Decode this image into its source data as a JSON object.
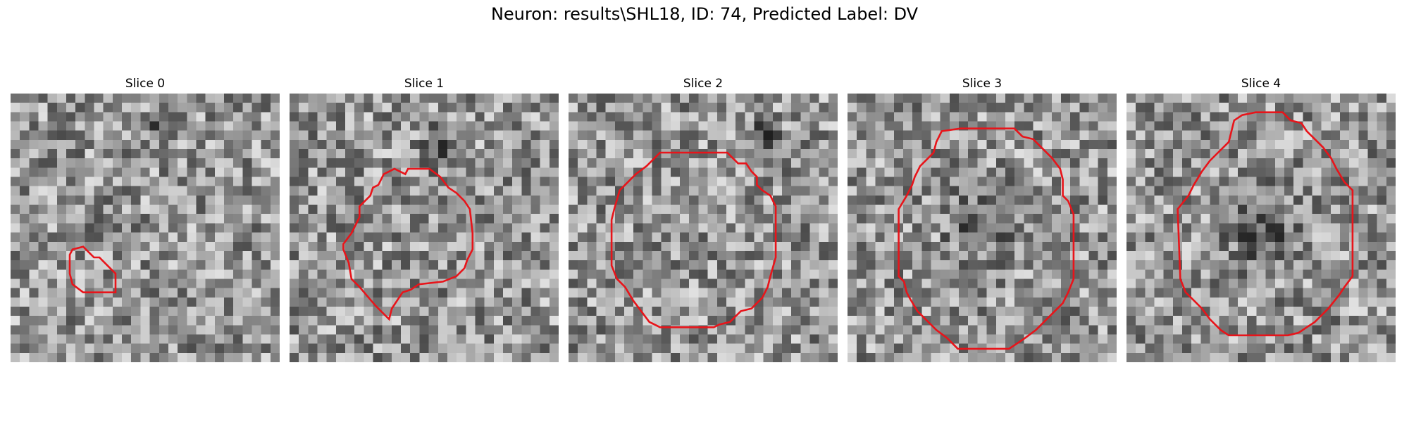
{
  "figure": {
    "title": "Neuron: results\\SHL18, ID: 74, Predicted Label: DV"
  },
  "panels": [
    {
      "title": "Slice 0",
      "seed": 11,
      "dark_blob": [
        0.55,
        0.12,
        0.08
      ],
      "contour": [
        [
          0.23,
          0.58
        ],
        [
          0.27,
          0.57
        ],
        [
          0.29,
          0.59
        ],
        [
          0.31,
          0.61
        ],
        [
          0.33,
          0.61
        ],
        [
          0.35,
          0.63
        ],
        [
          0.37,
          0.65
        ],
        [
          0.39,
          0.67
        ],
        [
          0.39,
          0.74
        ],
        [
          0.35,
          0.74
        ],
        [
          0.27,
          0.74
        ],
        [
          0.23,
          0.71
        ],
        [
          0.22,
          0.67
        ],
        [
          0.22,
          0.6
        ]
      ]
    },
    {
      "title": "Slice 1",
      "seed": 23,
      "dark_blob": [
        0.58,
        0.2,
        0.12
      ],
      "contour": [
        [
          0.39,
          0.28
        ],
        [
          0.43,
          0.3
        ],
        [
          0.44,
          0.28
        ],
        [
          0.52,
          0.28
        ],
        [
          0.56,
          0.31
        ],
        [
          0.59,
          0.35
        ],
        [
          0.62,
          0.37
        ],
        [
          0.65,
          0.4
        ],
        [
          0.67,
          0.43
        ],
        [
          0.68,
          0.52
        ],
        [
          0.68,
          0.58
        ],
        [
          0.66,
          0.62
        ],
        [
          0.65,
          0.65
        ],
        [
          0.62,
          0.68
        ],
        [
          0.57,
          0.7
        ],
        [
          0.48,
          0.71
        ],
        [
          0.45,
          0.73
        ],
        [
          0.42,
          0.74
        ],
        [
          0.38,
          0.8
        ],
        [
          0.37,
          0.84
        ],
        [
          0.32,
          0.79
        ],
        [
          0.26,
          0.72
        ],
        [
          0.23,
          0.69
        ],
        [
          0.22,
          0.63
        ],
        [
          0.2,
          0.58
        ],
        [
          0.2,
          0.56
        ],
        [
          0.23,
          0.52
        ],
        [
          0.26,
          0.46
        ],
        [
          0.26,
          0.42
        ],
        [
          0.3,
          0.38
        ],
        [
          0.31,
          0.35
        ],
        [
          0.33,
          0.34
        ],
        [
          0.35,
          0.3
        ]
      ]
    },
    {
      "title": "Slice 2",
      "seed": 37,
      "dark_blob": [
        0.72,
        0.16,
        0.1
      ],
      "contour": [
        [
          0.34,
          0.22
        ],
        [
          0.59,
          0.22
        ],
        [
          0.61,
          0.24
        ],
        [
          0.63,
          0.26
        ],
        [
          0.66,
          0.26
        ],
        [
          0.68,
          0.29
        ],
        [
          0.7,
          0.31
        ],
        [
          0.7,
          0.34
        ],
        [
          0.72,
          0.36
        ],
        [
          0.75,
          0.38
        ],
        [
          0.77,
          0.42
        ],
        [
          0.77,
          0.61
        ],
        [
          0.75,
          0.68
        ],
        [
          0.74,
          0.72
        ],
        [
          0.72,
          0.76
        ],
        [
          0.68,
          0.8
        ],
        [
          0.64,
          0.81
        ],
        [
          0.62,
          0.83
        ],
        [
          0.6,
          0.85
        ],
        [
          0.56,
          0.86
        ],
        [
          0.54,
          0.87
        ],
        [
          0.34,
          0.87
        ],
        [
          0.3,
          0.85
        ],
        [
          0.27,
          0.81
        ],
        [
          0.24,
          0.77
        ],
        [
          0.21,
          0.72
        ],
        [
          0.18,
          0.69
        ],
        [
          0.16,
          0.64
        ],
        [
          0.16,
          0.47
        ],
        [
          0.17,
          0.43
        ],
        [
          0.19,
          0.36
        ],
        [
          0.21,
          0.34
        ],
        [
          0.25,
          0.3
        ],
        [
          0.29,
          0.27
        ]
      ]
    },
    {
      "title": "Slice 3",
      "seed": 53,
      "dark_blob": [
        0.5,
        0.48,
        0.2
      ],
      "contour": [
        [
          0.35,
          0.14
        ],
        [
          0.42,
          0.13
        ],
        [
          0.62,
          0.13
        ],
        [
          0.65,
          0.16
        ],
        [
          0.69,
          0.17
        ],
        [
          0.76,
          0.24
        ],
        [
          0.79,
          0.28
        ],
        [
          0.8,
          0.32
        ],
        [
          0.8,
          0.38
        ],
        [
          0.82,
          0.4
        ],
        [
          0.84,
          0.45
        ],
        [
          0.84,
          0.69
        ],
        [
          0.82,
          0.74
        ],
        [
          0.8,
          0.78
        ],
        [
          0.75,
          0.83
        ],
        [
          0.7,
          0.88
        ],
        [
          0.66,
          0.91
        ],
        [
          0.63,
          0.93
        ],
        [
          0.6,
          0.95
        ],
        [
          0.41,
          0.95
        ],
        [
          0.37,
          0.91
        ],
        [
          0.33,
          0.88
        ],
        [
          0.3,
          0.85
        ],
        [
          0.26,
          0.81
        ],
        [
          0.23,
          0.76
        ],
        [
          0.22,
          0.74
        ],
        [
          0.21,
          0.7
        ],
        [
          0.19,
          0.68
        ],
        [
          0.19,
          0.43
        ],
        [
          0.22,
          0.38
        ],
        [
          0.24,
          0.34
        ],
        [
          0.25,
          0.31
        ],
        [
          0.27,
          0.27
        ],
        [
          0.3,
          0.24
        ],
        [
          0.32,
          0.22
        ],
        [
          0.33,
          0.18
        ]
      ]
    },
    {
      "title": "Slice 4",
      "seed": 71,
      "dark_blob": [
        0.5,
        0.5,
        0.22
      ],
      "contour": [
        [
          0.4,
          0.1
        ],
        [
          0.43,
          0.08
        ],
        [
          0.48,
          0.07
        ],
        [
          0.58,
          0.07
        ],
        [
          0.61,
          0.1
        ],
        [
          0.65,
          0.11
        ],
        [
          0.67,
          0.14
        ],
        [
          0.7,
          0.17
        ],
        [
          0.73,
          0.2
        ],
        [
          0.76,
          0.24
        ],
        [
          0.78,
          0.28
        ],
        [
          0.81,
          0.33
        ],
        [
          0.84,
          0.36
        ],
        [
          0.84,
          0.68
        ],
        [
          0.81,
          0.72
        ],
        [
          0.79,
          0.75
        ],
        [
          0.75,
          0.8
        ],
        [
          0.72,
          0.83
        ],
        [
          0.7,
          0.85
        ],
        [
          0.67,
          0.87
        ],
        [
          0.64,
          0.89
        ],
        [
          0.6,
          0.9
        ],
        [
          0.38,
          0.9
        ],
        [
          0.35,
          0.88
        ],
        [
          0.31,
          0.84
        ],
        [
          0.28,
          0.8
        ],
        [
          0.25,
          0.77
        ],
        [
          0.22,
          0.74
        ],
        [
          0.2,
          0.69
        ],
        [
          0.19,
          0.43
        ],
        [
          0.23,
          0.38
        ],
        [
          0.25,
          0.34
        ],
        [
          0.28,
          0.29
        ],
        [
          0.31,
          0.25
        ],
        [
          0.34,
          0.22
        ],
        [
          0.38,
          0.18
        ]
      ]
    }
  ],
  "style": {
    "contour_color": "#e8141a"
  }
}
